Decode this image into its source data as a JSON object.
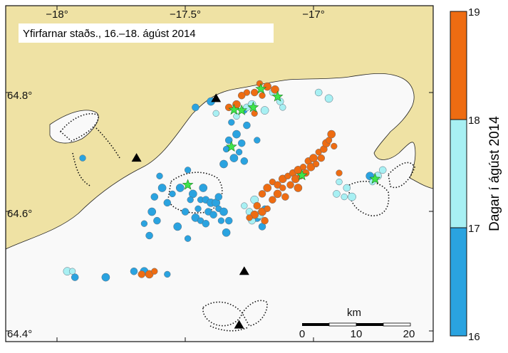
{
  "map": {
    "title": "Yfirfarnar staðs., 16.–18. ágúst 2014",
    "lon_ticks": [
      {
        "value": -18.0,
        "label": "−18°"
      },
      {
        "value": -17.5,
        "label": "−17.5°"
      },
      {
        "value": -17.0,
        "label": "−17°"
      }
    ],
    "lat_ticks": [
      {
        "value": 64.8,
        "label": "64.8°"
      },
      {
        "value": 64.6,
        "label": "64.6°"
      },
      {
        "value": 64.4,
        "label": "64.4°"
      }
    ],
    "scalebar": {
      "unit": "km",
      "labels": [
        "0",
        "10",
        "20"
      ]
    },
    "colors": {
      "land": "#efe2a4",
      "glacier": "#f9f9f9",
      "day16": "#2aa3e0",
      "day17": "#a8f0f3",
      "day18": "#ee6c12",
      "star": "#3ee54a"
    }
  },
  "colorbar": {
    "title": "Dagar í ágúst 2014",
    "labels": [
      "19",
      "18",
      "17",
      "16"
    ]
  },
  "chart_data": {
    "type": "scatter",
    "title": "Yfirfarnar staðs., 16.–18. ágúst 2014",
    "xlabel": "",
    "ylabel": "",
    "xlim": [
      -18.12,
      -16.62
    ],
    "ylim": [
      64.39,
      64.91
    ],
    "color_scale": {
      "title": "Dagar í ágúst 2014",
      "range": [
        16,
        19
      ],
      "bins": [
        16,
        17,
        18,
        19
      ]
    },
    "markers": [
      {
        "type": "station",
        "lon": -17.38,
        "lat": 64.79
      },
      {
        "type": "station",
        "lon": -17.69,
        "lat": 64.69
      },
      {
        "type": "station",
        "lon": -17.27,
        "lat": 64.5
      },
      {
        "type": "station",
        "lon": -17.29,
        "lat": 64.41
      }
    ],
    "stars": [
      {
        "lon": -17.205,
        "lat": 64.806
      },
      {
        "lon": -17.28,
        "lat": 64.77
      },
      {
        "lon": -17.235,
        "lat": 64.775
      },
      {
        "lon": -17.31,
        "lat": 64.771
      },
      {
        "lon": -17.14,
        "lat": 64.793
      },
      {
        "lon": -17.32,
        "lat": 64.709
      },
      {
        "lon": -17.49,
        "lat": 64.645
      },
      {
        "lon": -17.045,
        "lat": 64.661
      },
      {
        "lon": -16.76,
        "lat": 64.655
      }
    ],
    "series": [
      {
        "name": "16",
        "points": [
          {
            "lon": -17.32,
            "lat": 64.75
          },
          {
            "lon": -17.33,
            "lat": 64.72
          },
          {
            "lon": -17.3,
            "lat": 64.73
          },
          {
            "lon": -17.34,
            "lat": 64.705
          },
          {
            "lon": -17.28,
            "lat": 64.715
          },
          {
            "lon": -17.31,
            "lat": 64.69
          },
          {
            "lon": -17.29,
            "lat": 64.7
          },
          {
            "lon": -17.27,
            "lat": 64.685
          },
          {
            "lon": -17.35,
            "lat": 64.68
          },
          {
            "lon": -17.22,
            "lat": 64.72
          },
          {
            "lon": -17.26,
            "lat": 64.745
          },
          {
            "lon": -17.4,
            "lat": 64.785
          },
          {
            "lon": -17.27,
            "lat": 64.77
          },
          {
            "lon": -17.46,
            "lat": 64.775
          },
          {
            "lon": -17.43,
            "lat": 64.64
          },
          {
            "lon": -17.44,
            "lat": 64.62
          },
          {
            "lon": -17.42,
            "lat": 64.62
          },
          {
            "lon": -17.4,
            "lat": 64.615
          },
          {
            "lon": -17.45,
            "lat": 64.605
          },
          {
            "lon": -17.41,
            "lat": 64.6
          },
          {
            "lon": -17.38,
            "lat": 64.615
          },
          {
            "lon": -17.37,
            "lat": 64.605
          },
          {
            "lon": -17.39,
            "lat": 64.595
          },
          {
            "lon": -17.35,
            "lat": 64.6
          },
          {
            "lon": -17.36,
            "lat": 64.585
          },
          {
            "lon": -17.33,
            "lat": 64.585
          },
          {
            "lon": -17.47,
            "lat": 64.63
          },
          {
            "lon": -17.48,
            "lat": 64.62
          },
          {
            "lon": -17.5,
            "lat": 64.6
          },
          {
            "lon": -17.46,
            "lat": 64.59
          },
          {
            "lon": -17.44,
            "lat": 64.585
          },
          {
            "lon": -17.42,
            "lat": 64.58
          },
          {
            "lon": -17.52,
            "lat": 64.64
          },
          {
            "lon": -17.55,
            "lat": 64.63
          },
          {
            "lon": -17.57,
            "lat": 64.615
          },
          {
            "lon": -17.59,
            "lat": 64.64
          },
          {
            "lon": -17.6,
            "lat": 64.66
          },
          {
            "lon": -17.62,
            "lat": 64.625
          },
          {
            "lon": -17.63,
            "lat": 64.6
          },
          {
            "lon": -17.66,
            "lat": 64.58
          },
          {
            "lon": -17.64,
            "lat": 64.56
          },
          {
            "lon": -17.53,
            "lat": 64.575
          },
          {
            "lon": -17.49,
            "lat": 64.555
          },
          {
            "lon": -17.37,
            "lat": 64.625
          },
          {
            "lon": -17.34,
            "lat": 64.565
          },
          {
            "lon": -17.49,
            "lat": 64.67
          },
          {
            "lon": -17.61,
            "lat": 64.585
          },
          {
            "lon": -17.22,
            "lat": 64.59
          },
          {
            "lon": -17.19,
            "lat": 64.605
          },
          {
            "lon": -17.2,
            "lat": 64.575
          },
          {
            "lon": -16.78,
            "lat": 64.66
          },
          {
            "lon": -17.9,
            "lat": 64.69
          },
          {
            "lon": -17.7,
            "lat": 64.5
          },
          {
            "lon": -17.66,
            "lat": 64.5
          },
          {
            "lon": -17.57,
            "lat": 64.495
          },
          {
            "lon": -17.93,
            "lat": 64.49
          },
          {
            "lon": -17.81,
            "lat": 64.49
          }
        ]
      },
      {
        "name": "17",
        "points": [
          {
            "lon": -17.3,
            "lat": 64.76
          },
          {
            "lon": -17.26,
            "lat": 64.775
          },
          {
            "lon": -17.24,
            "lat": 64.78
          },
          {
            "lon": -17.16,
            "lat": 64.8
          },
          {
            "lon": -17.13,
            "lat": 64.785
          },
          {
            "lon": -17.19,
            "lat": 64.77
          },
          {
            "lon": -17.12,
            "lat": 64.775
          },
          {
            "lon": -16.98,
            "lat": 64.8
          },
          {
            "lon": -16.94,
            "lat": 64.79
          },
          {
            "lon": -17.38,
            "lat": 64.765
          },
          {
            "lon": -17.25,
            "lat": 64.6
          },
          {
            "lon": -17.23,
            "lat": 64.62
          },
          {
            "lon": -17.27,
            "lat": 64.61
          },
          {
            "lon": -17.24,
            "lat": 64.585
          },
          {
            "lon": -17.21,
            "lat": 64.595
          },
          {
            "lon": -16.9,
            "lat": 64.65
          },
          {
            "lon": -16.87,
            "lat": 64.64
          },
          {
            "lon": -16.85,
            "lat": 64.625
          },
          {
            "lon": -16.88,
            "lat": 64.625
          },
          {
            "lon": -16.91,
            "lat": 64.63
          },
          {
            "lon": -16.75,
            "lat": 64.66
          },
          {
            "lon": -16.77,
            "lat": 64.65
          },
          {
            "lon": -16.73,
            "lat": 64.67
          },
          {
            "lon": -17.96,
            "lat": 64.5
          },
          {
            "lon": -17.94,
            "lat": 64.5
          }
        ]
      },
      {
        "name": "18",
        "points": [
          {
            "lon": -17.21,
            "lat": 64.815
          },
          {
            "lon": -17.23,
            "lat": 64.8
          },
          {
            "lon": -17.18,
            "lat": 64.81
          },
          {
            "lon": -17.26,
            "lat": 64.8
          },
          {
            "lon": -17.28,
            "lat": 64.795
          },
          {
            "lon": -17.15,
            "lat": 64.805
          },
          {
            "lon": -17.2,
            "lat": 64.795
          },
          {
            "lon": -17.33,
            "lat": 64.775
          },
          {
            "lon": -17.3,
            "lat": 64.78
          },
          {
            "lon": -17.23,
            "lat": 64.765
          },
          {
            "lon": -17.2,
            "lat": 64.63
          },
          {
            "lon": -17.18,
            "lat": 64.64
          },
          {
            "lon": -17.16,
            "lat": 64.65
          },
          {
            "lon": -17.14,
            "lat": 64.645
          },
          {
            "lon": -17.12,
            "lat": 64.655
          },
          {
            "lon": -17.1,
            "lat": 64.66
          },
          {
            "lon": -17.08,
            "lat": 64.665
          },
          {
            "lon": -17.06,
            "lat": 64.67
          },
          {
            "lon": -17.04,
            "lat": 64.675
          },
          {
            "lon": -17.02,
            "lat": 64.685
          },
          {
            "lon": -17.0,
            "lat": 64.69
          },
          {
            "lon": -16.98,
            "lat": 64.7
          },
          {
            "lon": -16.96,
            "lat": 64.705
          },
          {
            "lon": -16.95,
            "lat": 64.715
          },
          {
            "lon": -16.94,
            "lat": 64.72
          },
          {
            "lon": -17.22,
            "lat": 64.61
          },
          {
            "lon": -17.2,
            "lat": 64.6
          },
          {
            "lon": -17.18,
            "lat": 64.605
          },
          {
            "lon": -17.16,
            "lat": 64.62
          },
          {
            "lon": -17.14,
            "lat": 64.63
          },
          {
            "lon": -17.12,
            "lat": 64.64
          },
          {
            "lon": -17.09,
            "lat": 64.645
          },
          {
            "lon": -17.07,
            "lat": 64.655
          },
          {
            "lon": -17.05,
            "lat": 64.66
          },
          {
            "lon": -17.03,
            "lat": 64.665
          },
          {
            "lon": -17.01,
            "lat": 64.675
          },
          {
            "lon": -16.99,
            "lat": 64.68
          },
          {
            "lon": -16.97,
            "lat": 64.69
          },
          {
            "lon": -17.23,
            "lat": 64.595
          },
          {
            "lon": -17.25,
            "lat": 64.59
          },
          {
            "lon": -17.19,
            "lat": 64.585
          },
          {
            "lon": -16.93,
            "lat": 64.73
          },
          {
            "lon": -16.92,
            "lat": 64.71
          },
          {
            "lon": -17.11,
            "lat": 64.625
          },
          {
            "lon": -17.06,
            "lat": 64.64
          },
          {
            "lon": -16.9,
            "lat": 64.665
          },
          {
            "lon": -17.67,
            "lat": 64.495
          },
          {
            "lon": -17.64,
            "lat": 64.495
          },
          {
            "lon": -17.62,
            "lat": 64.5
          }
        ]
      }
    ]
  }
}
